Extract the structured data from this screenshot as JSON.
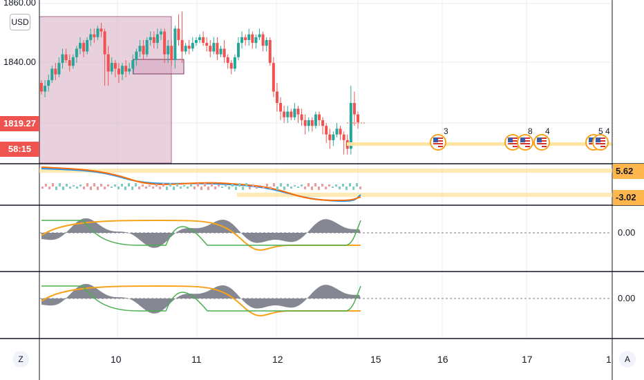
{
  "colors": {
    "up": "#26a69a",
    "down": "#ef5350",
    "session_box": "#d7a9c1",
    "orange": "#f7a21b",
    "highlight": "#ffe4a3",
    "macd": "#2196f3",
    "signal": "#ff6d00",
    "oscillator_fill": "#787b86",
    "green_line": "#4caf50",
    "price_tag": "#ef5350",
    "axis_tag": "#ffb74d"
  },
  "price_axis": {
    "currency": "USD",
    "labels": [
      "1860.00",
      "1840.00"
    ],
    "current_price": "1819.27",
    "countdown": "58:15"
  },
  "time_axis": {
    "labels": [
      "10",
      "11",
      "12",
      "15",
      "16",
      "17",
      "1"
    ]
  },
  "indicator_axis": {
    "macd_upper": "5.62",
    "macd_lower": "-3.02",
    "osc1_zero": "0.00",
    "osc2_zero": "0.00"
  },
  "events": [
    {
      "icon": "us-flag-icon",
      "label": "3"
    },
    {
      "icon": "us-flag-icon",
      "label": "8"
    },
    {
      "icon": "us-flag-icon",
      "label": "4"
    },
    {
      "icon": "us-flag-icon",
      "label": "5 4"
    }
  ],
  "corner_buttons": {
    "left": "Z",
    "right": "A"
  },
  "chart_data": {
    "type": "candlestick",
    "ylim": [
      1805,
      1862
    ],
    "candles": [
      [
        1833,
        1830,
        1829,
        1834
      ],
      [
        1830,
        1832,
        1828,
        1834
      ],
      [
        1832,
        1834,
        1830,
        1836
      ],
      [
        1834,
        1838,
        1833,
        1839
      ],
      [
        1838,
        1836,
        1834,
        1840
      ],
      [
        1836,
        1840,
        1835,
        1842
      ],
      [
        1840,
        1843,
        1838,
        1845
      ],
      [
        1843,
        1841,
        1840,
        1845
      ],
      [
        1841,
        1839,
        1837,
        1843
      ],
      [
        1839,
        1842,
        1838,
        1843
      ],
      [
        1842,
        1845,
        1840,
        1846
      ],
      [
        1845,
        1847,
        1843,
        1849
      ],
      [
        1847,
        1844,
        1842,
        1848
      ],
      [
        1844,
        1848,
        1843,
        1849
      ],
      [
        1848,
        1850,
        1846,
        1852
      ],
      [
        1850,
        1849,
        1847,
        1852
      ],
      [
        1849,
        1852,
        1848,
        1853
      ],
      [
        1852,
        1851,
        1849,
        1854
      ],
      [
        1851,
        1843,
        1832,
        1852
      ],
      [
        1843,
        1837,
        1832,
        1846
      ],
      [
        1837,
        1840,
        1836,
        1842
      ],
      [
        1840,
        1838,
        1835,
        1841
      ],
      [
        1838,
        1836,
        1833,
        1840
      ],
      [
        1836,
        1839,
        1834,
        1840
      ],
      [
        1839,
        1837,
        1835,
        1841
      ],
      [
        1837,
        1838,
        1836,
        1840
      ],
      [
        1838,
        1841,
        1836,
        1843
      ],
      [
        1841,
        1844,
        1839,
        1845
      ],
      [
        1844,
        1846,
        1842,
        1848
      ],
      [
        1846,
        1843,
        1841,
        1848
      ],
      [
        1843,
        1848,
        1842,
        1849
      ],
      [
        1848,
        1849,
        1846,
        1851
      ],
      [
        1849,
        1847,
        1845,
        1851
      ],
      [
        1847,
        1850,
        1845,
        1852
      ],
      [
        1850,
        1851,
        1848,
        1852
      ],
      [
        1851,
        1843,
        1840,
        1852
      ],
      [
        1843,
        1846,
        1840,
        1848
      ],
      [
        1846,
        1841,
        1839,
        1848
      ],
      [
        1841,
        1852,
        1838,
        1853
      ],
      [
        1852,
        1848,
        1846,
        1857
      ],
      [
        1848,
        1844,
        1840,
        1858
      ],
      [
        1844,
        1846,
        1843,
        1847
      ],
      [
        1846,
        1845,
        1843,
        1848
      ],
      [
        1845,
        1847,
        1844,
        1849
      ],
      [
        1847,
        1848,
        1846,
        1849
      ],
      [
        1848,
        1849,
        1847,
        1850
      ],
      [
        1849,
        1847,
        1846,
        1851
      ],
      [
        1847,
        1846,
        1844,
        1849
      ],
      [
        1846,
        1844,
        1842,
        1848
      ],
      [
        1844,
        1847,
        1843,
        1849
      ],
      [
        1847,
        1843,
        1841,
        1849
      ],
      [
        1843,
        1845,
        1842,
        1846
      ],
      [
        1845,
        1842,
        1840,
        1848
      ],
      [
        1842,
        1840,
        1838,
        1843
      ],
      [
        1840,
        1838,
        1836,
        1841
      ],
      [
        1838,
        1842,
        1837,
        1843
      ],
      [
        1842,
        1847,
        1841,
        1849
      ],
      [
        1847,
        1849,
        1845,
        1851
      ],
      [
        1849,
        1848,
        1846,
        1850
      ],
      [
        1848,
        1850,
        1846,
        1852
      ],
      [
        1850,
        1847,
        1845,
        1851
      ],
      [
        1847,
        1849,
        1845,
        1850
      ],
      [
        1849,
        1850,
        1848,
        1852
      ],
      [
        1850,
        1846,
        1844,
        1851
      ],
      [
        1846,
        1848,
        1844,
        1849
      ],
      [
        1848,
        1840,
        1839,
        1849
      ],
      [
        1840,
        1830,
        1828,
        1842
      ],
      [
        1830,
        1826,
        1823,
        1833
      ],
      [
        1826,
        1823,
        1820,
        1828
      ],
      [
        1823,
        1821,
        1819,
        1825
      ],
      [
        1821,
        1823,
        1819,
        1825
      ],
      [
        1823,
        1821,
        1820,
        1824
      ],
      [
        1821,
        1824,
        1820,
        1826
      ],
      [
        1824,
        1822,
        1819,
        1825
      ],
      [
        1822,
        1820,
        1818,
        1824
      ],
      [
        1820,
        1818,
        1815,
        1822
      ],
      [
        1818,
        1820,
        1816,
        1821
      ],
      [
        1820,
        1818,
        1816,
        1821
      ],
      [
        1818,
        1822,
        1817,
        1823
      ],
      [
        1822,
        1820,
        1818,
        1823
      ],
      [
        1820,
        1818,
        1815,
        1821
      ],
      [
        1818,
        1815,
        1812,
        1819
      ],
      [
        1815,
        1813,
        1810,
        1817
      ],
      [
        1813,
        1815,
        1811,
        1816
      ],
      [
        1815,
        1817,
        1814,
        1819
      ],
      [
        1817,
        1815,
        1813,
        1818
      ],
      [
        1815,
        1813,
        1808,
        1816
      ],
      [
        1813,
        1810,
        1808,
        1815
      ],
      [
        1810,
        1826,
        1808,
        1832
      ],
      [
        1826,
        1822,
        1818,
        1830
      ],
      [
        1822,
        1819.27,
        1817,
        1823
      ]
    ],
    "macd": {
      "upper": 5.62,
      "lower": -3.02
    },
    "oscillators": {
      "zero": 0.0
    }
  }
}
